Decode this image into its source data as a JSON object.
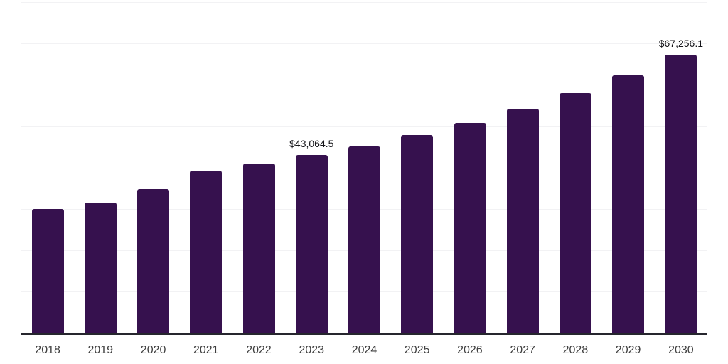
{
  "chart_data": {
    "type": "bar",
    "title": "",
    "xlabel": "",
    "ylabel": "",
    "categories": [
      "2018",
      "2019",
      "2020",
      "2021",
      "2022",
      "2023",
      "2024",
      "2025",
      "2026",
      "2027",
      "2028",
      "2029",
      "2030"
    ],
    "values": [
      30050,
      31600,
      34830,
      39300,
      41000,
      43064.5,
      45200,
      47950,
      50840,
      54270,
      58100,
      62400,
      67256.1
    ],
    "data_labels": [
      null,
      null,
      null,
      null,
      null,
      "$43,064.5",
      null,
      null,
      null,
      null,
      null,
      null,
      "$67,256.1"
    ],
    "ylim": [
      0,
      80000
    ],
    "grid_step": 10000,
    "grid": true,
    "legend": false,
    "y_tick_labels_visible": false,
    "colors": {
      "bar": "#36114E",
      "gridline": "#f2f2f4",
      "axis_line": "#26262e",
      "tick_label": "#3f3f3f",
      "data_label": "#151519",
      "background": "#ffffff"
    }
  }
}
